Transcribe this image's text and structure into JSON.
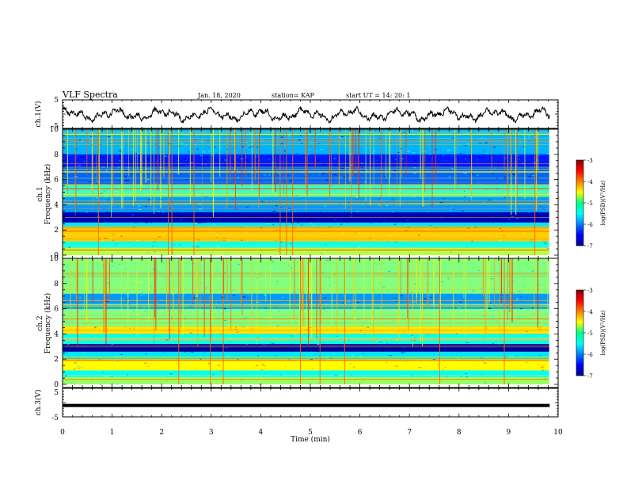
{
  "header": {
    "title": "VLF Spectra",
    "date": "Jan. 18, 2020",
    "station": "station= KAP",
    "start": "start  UT =   14: 20: 1"
  },
  "chart_data": [
    {
      "type": "line",
      "panel": "ch1-waveform",
      "ylabel": "ch.1(V)",
      "ylim": [
        -5,
        5
      ],
      "y_ticks": [
        "5",
        "-5"
      ],
      "xlim": [
        0,
        10
      ],
      "trace_extent_min": 9.83,
      "series": [
        {
          "values": "noisy waveform oscillating roughly between -4 and 3.5 V"
        }
      ]
    },
    {
      "type": "heatmap",
      "panel": "ch1-spectrogram",
      "ylabel": "ch.1\nFrequency (kHz)",
      "ylim": [
        0,
        10
      ],
      "y_ticks": [
        "0",
        "2",
        "4",
        "6",
        "8",
        "10"
      ],
      "xlim": [
        0,
        10
      ],
      "colorbar": {
        "label": "log(PSD)(V²/Hz)",
        "range": [
          -7,
          -3
        ],
        "ticks": [
          "-3",
          "-4",
          "-5",
          "-6",
          "-7"
        ]
      },
      "bands": [
        {
          "f_lo": 0.0,
          "f_hi": 0.6,
          "level": -4.8
        },
        {
          "f_lo": 0.6,
          "f_hi": 1.1,
          "level": -5.4
        },
        {
          "f_lo": 1.1,
          "f_hi": 2.2,
          "level": -4.3
        },
        {
          "f_lo": 2.2,
          "f_hi": 2.6,
          "level": -5.6
        },
        {
          "f_lo": 2.6,
          "f_hi": 3.4,
          "level": -6.8
        },
        {
          "f_lo": 3.4,
          "f_hi": 4.6,
          "level": -5.9
        },
        {
          "f_lo": 4.6,
          "f_hi": 5.6,
          "level": -5.3
        },
        {
          "f_lo": 5.6,
          "f_hi": 7.0,
          "level": -6.1
        },
        {
          "f_lo": 7.0,
          "f_hi": 8.0,
          "level": -6.4
        },
        {
          "f_lo": 8.0,
          "f_hi": 10.0,
          "level": -5.8
        }
      ],
      "lines": [
        {
          "f": 0.4,
          "level": -4.0
        },
        {
          "f": 1.9,
          "level": -3.8
        },
        {
          "f": 2.3,
          "level": -4.2
        },
        {
          "f": 4.1,
          "level": -4.3
        },
        {
          "f": 4.8,
          "level": -4.6
        },
        {
          "f": 5.3,
          "level": -3.6
        },
        {
          "f": 5.6,
          "level": -4.0
        },
        {
          "f": 6.6,
          "level": -4.5
        },
        {
          "f": 9.6,
          "level": -4.6
        }
      ]
    },
    {
      "type": "heatmap",
      "panel": "ch2-spectrogram",
      "ylabel": "ch.2\nFrequency (kHz)",
      "ylim": [
        0,
        10
      ],
      "y_ticks": [
        "0",
        "2",
        "4",
        "6",
        "8",
        "10"
      ],
      "xlim": [
        0,
        10
      ],
      "colorbar": {
        "label": "log(PSD)(V²/Hz)",
        "range": [
          -7,
          -3
        ],
        "ticks": [
          "-3",
          "-4",
          "-5",
          "-6",
          "-7"
        ]
      },
      "bands": [
        {
          "f_lo": 0.0,
          "f_hi": 0.6,
          "level": -4.9
        },
        {
          "f_lo": 0.6,
          "f_hi": 1.1,
          "level": -5.5
        },
        {
          "f_lo": 1.1,
          "f_hi": 2.0,
          "level": -4.5
        },
        {
          "f_lo": 2.0,
          "f_hi": 2.6,
          "level": -5.6
        },
        {
          "f_lo": 2.6,
          "f_hi": 3.2,
          "level": -6.9
        },
        {
          "f_lo": 3.2,
          "f_hi": 4.0,
          "level": -5.5
        },
        {
          "f_lo": 4.0,
          "f_hi": 4.6,
          "level": -4.4
        },
        {
          "f_lo": 4.6,
          "f_hi": 6.0,
          "level": -5.0
        },
        {
          "f_lo": 6.0,
          "f_hi": 7.2,
          "level": -5.9
        },
        {
          "f_lo": 7.2,
          "f_hi": 10.0,
          "level": -5.0
        }
      ],
      "lines": [
        {
          "f": 0.4,
          "level": -4.1
        },
        {
          "f": 1.9,
          "level": -3.9
        },
        {
          "f": 3.6,
          "level": -4.3
        },
        {
          "f": 4.3,
          "level": -4.2
        },
        {
          "f": 5.2,
          "level": -4.0
        },
        {
          "f": 6.3,
          "level": -4.6
        }
      ]
    },
    {
      "type": "line",
      "panel": "ch3-waveform",
      "ylabel": "ch.3(V)",
      "ylim": [
        -5,
        5
      ],
      "y_ticks": [
        "5",
        "-5"
      ],
      "xlim": [
        0,
        10
      ],
      "xlabel": "Time (min)",
      "x_ticks": [
        "0",
        "1",
        "2",
        "3",
        "4",
        "5",
        "6",
        "7",
        "8",
        "9",
        "10"
      ],
      "trace_extent_min": 9.83,
      "series": [
        {
          "values": "constant level of about -1 V (thick flat line)"
        }
      ]
    }
  ]
}
